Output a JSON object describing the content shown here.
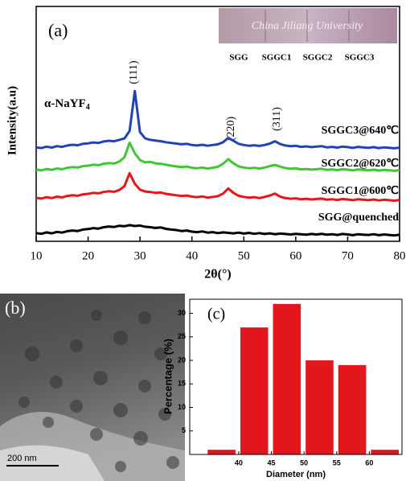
{
  "chart_data": [
    {
      "type": "line",
      "panel_label": "(a)",
      "xlabel": "2θ(°)",
      "ylabel": "Intensity(a.u)",
      "phase_label": "α-NaYF",
      "phase_subscript": "4",
      "peak_labels": [
        "(111)",
        "(220)",
        "(311)"
      ],
      "inset_text": "China Jiliang University",
      "inset_labels": [
        "SGG",
        "SGGC1",
        "SGGC2",
        "SGGC3"
      ],
      "xlim": [
        10,
        80
      ],
      "xticks": [
        10,
        20,
        30,
        40,
        50,
        60,
        70,
        80
      ],
      "ylim": [
        0,
        100
      ],
      "x": [
        10,
        11,
        12,
        13,
        14,
        15,
        16,
        17,
        18,
        19,
        20,
        21,
        22,
        23,
        24,
        25,
        26,
        27,
        28,
        29,
        30,
        31,
        32,
        33,
        34,
        35,
        36,
        37,
        38,
        39,
        40,
        41,
        42,
        43,
        44,
        45,
        46,
        47,
        48,
        49,
        50,
        51,
        52,
        53,
        54,
        55,
        56,
        57,
        58,
        59,
        60,
        61,
        62,
        63,
        64,
        65,
        66,
        67,
        68,
        69,
        70,
        71,
        72,
        73,
        74,
        75,
        76,
        77,
        78,
        79,
        80
      ],
      "series": [
        {
          "name": "SGG@quenched",
          "color": "#000000",
          "values": [
            3.5,
            3.2,
            3.8,
            3.4,
            4.0,
            3.7,
            4.3,
            4.6,
            4.4,
            5.0,
            5.2,
            5.6,
            5.4,
            6.0,
            6.3,
            6.1,
            6.6,
            6.4,
            6.9,
            6.5,
            6.7,
            6.2,
            6.0,
            5.7,
            5.9,
            5.3,
            5.0,
            4.8,
            4.4,
            4.6,
            4.1,
            3.9,
            4.2,
            3.7,
            3.9,
            3.5,
            3.8,
            3.6,
            3.4,
            3.7,
            3.3,
            3.6,
            3.2,
            3.5,
            3.1,
            3.4,
            3.0,
            3.3,
            3.1,
            2.9,
            3.2,
            3.0,
            2.8,
            3.1,
            2.9,
            3.2,
            2.8,
            3.0,
            2.7,
            3.1,
            2.9,
            2.6,
            3.0,
            2.8,
            2.7,
            3.0,
            2.6,
            2.9,
            2.7,
            2.5,
            2.8
          ]
        },
        {
          "name": "SGGC1@600℃",
          "color": "#e8161b",
          "values": [
            18.5,
            18.2,
            18.8,
            18.4,
            19.0,
            18.7,
            19.3,
            19.6,
            19.4,
            20.0,
            20.2,
            20.6,
            20.4,
            21.0,
            21.3,
            21.1,
            21.8,
            23.5,
            29.0,
            24.5,
            22.0,
            21.2,
            21.0,
            20.6,
            20.8,
            20.2,
            19.9,
            19.6,
            19.3,
            19.5,
            19.0,
            18.8,
            19.1,
            18.6,
            18.9,
            19.2,
            20.3,
            22.5,
            20.6,
            19.4,
            18.9,
            18.6,
            18.8,
            18.4,
            18.9,
            19.5,
            20.3,
            19.0,
            18.4,
            18.1,
            18.3,
            17.9,
            18.1,
            17.8,
            18.0,
            18.2,
            17.7,
            17.9,
            17.6,
            18.0,
            17.8,
            17.5,
            17.9,
            17.7,
            17.5,
            17.8,
            17.4,
            17.7,
            17.5,
            17.3,
            17.6
          ]
        },
        {
          "name": "SGGC2@620℃",
          "color": "#3fc535",
          "values": [
            30.5,
            30.2,
            30.8,
            30.4,
            31.0,
            30.7,
            31.3,
            31.6,
            31.4,
            32.0,
            32.2,
            32.6,
            32.4,
            33.0,
            33.3,
            33.1,
            33.9,
            35.8,
            42.0,
            37.5,
            34.6,
            33.6,
            33.8,
            33.2,
            33.0,
            32.6,
            32.2,
            31.9,
            31.6,
            31.8,
            31.3,
            31.1,
            31.4,
            31.0,
            31.3,
            31.7,
            33.0,
            35.0,
            33.2,
            31.9,
            31.4,
            31.1,
            31.3,
            31.0,
            31.4,
            32.0,
            32.5,
            31.8,
            31.2,
            30.9,
            31.1,
            30.6,
            30.8,
            30.5,
            30.7,
            30.9,
            30.4,
            30.6,
            30.3,
            30.7,
            30.5,
            30.2,
            30.6,
            30.4,
            30.2,
            30.5,
            30.1,
            30.4,
            30.2,
            30.0,
            30.3
          ]
        },
        {
          "name": "SGGC3@640℃",
          "color": "#2243b6",
          "values": [
            40.0,
            39.7,
            40.3,
            39.9,
            40.5,
            40.2,
            40.8,
            41.1,
            40.9,
            41.5,
            41.7,
            42.1,
            41.9,
            42.5,
            42.8,
            42.6,
            43.2,
            43.8,
            47.0,
            64.0,
            46.5,
            43.8,
            43.2,
            42.9,
            42.6,
            42.2,
            41.9,
            41.6,
            41.3,
            41.5,
            41.0,
            40.8,
            41.1,
            40.7,
            41.0,
            41.3,
            42.2,
            44.0,
            42.8,
            41.5,
            41.0,
            40.7,
            40.9,
            40.6,
            41.0,
            41.6,
            42.6,
            41.4,
            40.8,
            40.5,
            40.7,
            40.2,
            40.4,
            40.1,
            40.3,
            40.5,
            40.0,
            40.2,
            39.9,
            40.3,
            40.1,
            39.8,
            40.2,
            40.0,
            39.8,
            40.1,
            39.7,
            40.0,
            39.8,
            39.6,
            39.9
          ]
        }
      ]
    },
    {
      "type": "histogram",
      "panel_label": "(c)",
      "xlabel": "Diameter (nm)",
      "ylabel": "Percentage (%)",
      "bins": [
        35,
        40,
        45,
        50,
        55,
        60,
        65
      ],
      "values": [
        1,
        27,
        32,
        20,
        19,
        1
      ],
      "color": "#e3161c",
      "xlim": [
        32.5,
        65
      ],
      "xticks": [
        40,
        45,
        50,
        55,
        60
      ],
      "ylim": [
        0,
        33
      ],
      "yticks": [
        5,
        10,
        15,
        20,
        25,
        30
      ]
    }
  ],
  "image": {
    "panel_label": "(b)",
    "scale_bar": "200 nm"
  }
}
